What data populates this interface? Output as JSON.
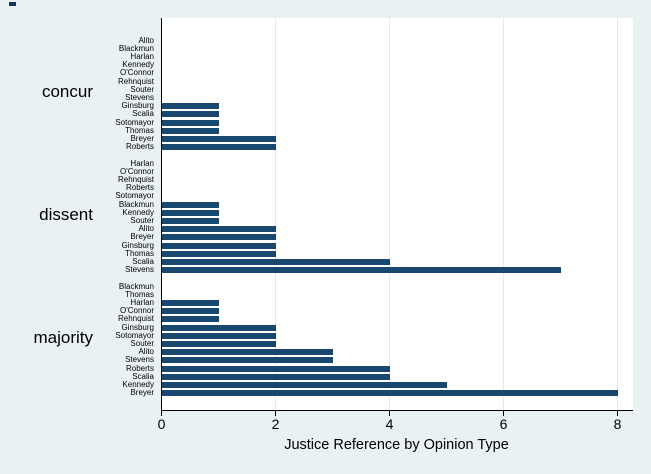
{
  "figure": {
    "background_color": "#eaf1f3",
    "plot_background_color": "#ffffff",
    "bar_color": "#1a476f",
    "grid_color": "#e2ebef",
    "axis_color": "#000000"
  },
  "chart_data": {
    "type": "bar",
    "orientation": "horizontal",
    "title": "",
    "xlabel": "Justice Reference by Opinion Type",
    "ylabel": "",
    "xlim": [
      0,
      8
    ],
    "xticks": [
      0,
      2,
      4,
      6,
      8
    ],
    "grid": true,
    "legend_position": "none",
    "groups": [
      {
        "label": "concur",
        "rows": [
          {
            "justice": "Alito",
            "value": 0
          },
          {
            "justice": "Blackmun",
            "value": 0
          },
          {
            "justice": "Harlan",
            "value": 0
          },
          {
            "justice": "Kennedy",
            "value": 0
          },
          {
            "justice": "O'Connor",
            "value": 0
          },
          {
            "justice": "Rehnquist",
            "value": 0
          },
          {
            "justice": "Souter",
            "value": 0
          },
          {
            "justice": "Stevens",
            "value": 0
          },
          {
            "justice": "Ginsburg",
            "value": 1
          },
          {
            "justice": "Scalia",
            "value": 1
          },
          {
            "justice": "Sotomayor",
            "value": 1
          },
          {
            "justice": "Thomas",
            "value": 1
          },
          {
            "justice": "Breyer",
            "value": 2
          },
          {
            "justice": "Roberts",
            "value": 2
          }
        ]
      },
      {
        "label": "dissent",
        "rows": [
          {
            "justice": "Harlan",
            "value": 0
          },
          {
            "justice": "O'Connor",
            "value": 0
          },
          {
            "justice": "Rehnquist",
            "value": 0
          },
          {
            "justice": "Roberts",
            "value": 0
          },
          {
            "justice": "Sotomayor",
            "value": 0
          },
          {
            "justice": "Blackmun",
            "value": 1
          },
          {
            "justice": "Kennedy",
            "value": 1
          },
          {
            "justice": "Souter",
            "value": 1
          },
          {
            "justice": "Alito",
            "value": 2
          },
          {
            "justice": "Breyer",
            "value": 2
          },
          {
            "justice": "Ginsburg",
            "value": 2
          },
          {
            "justice": "Thomas",
            "value": 2
          },
          {
            "justice": "Scalia",
            "value": 4
          },
          {
            "justice": "Stevens",
            "value": 7
          }
        ]
      },
      {
        "label": "majority",
        "rows": [
          {
            "justice": "Blackmun",
            "value": 0
          },
          {
            "justice": "Thomas",
            "value": 0
          },
          {
            "justice": "Harlan",
            "value": 1
          },
          {
            "justice": "O'Connor",
            "value": 1
          },
          {
            "justice": "Rehnquist",
            "value": 1
          },
          {
            "justice": "Ginsburg",
            "value": 2
          },
          {
            "justice": "Sotomayor",
            "value": 2
          },
          {
            "justice": "Souter",
            "value": 2
          },
          {
            "justice": "Alito",
            "value": 3
          },
          {
            "justice": "Stevens",
            "value": 3
          },
          {
            "justice": "Roberts",
            "value": 4
          },
          {
            "justice": "Scalia",
            "value": 4
          },
          {
            "justice": "Kennedy",
            "value": 5
          },
          {
            "justice": "Breyer",
            "value": 8
          }
        ]
      }
    ]
  }
}
